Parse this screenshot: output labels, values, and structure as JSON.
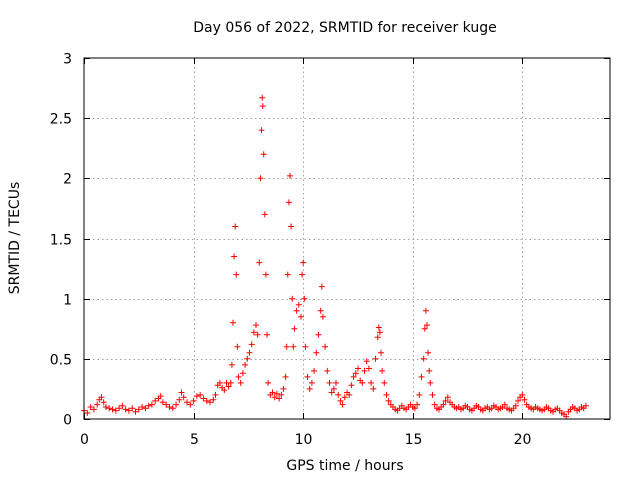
{
  "chart_data": {
    "type": "scatter",
    "title": "Day 056 of 2022, SRMTID for receiver kuge",
    "xlabel": "GPS time / hours",
    "ylabel": "SRMTID / TECUs",
    "xlim": [
      0,
      24
    ],
    "ylim": [
      0,
      3
    ],
    "xticks": [
      0,
      5,
      10,
      15,
      20
    ],
    "yticks": [
      0,
      0.5,
      1,
      1.5,
      2,
      2.5,
      3
    ],
    "xtick_labels": [
      "0",
      "5",
      "10",
      "15",
      "20"
    ],
    "ytick_labels": [
      "0",
      "0.5",
      "1",
      "1.5",
      "2",
      "2.5",
      "3"
    ],
    "grid": true,
    "marker": "+",
    "color": "#ff0000",
    "series": [
      {
        "name": "SRMTID",
        "points": [
          [
            0.0,
            0.07
          ],
          [
            0.15,
            0.05
          ],
          [
            0.3,
            0.1
          ],
          [
            0.45,
            0.08
          ],
          [
            0.6,
            0.12
          ],
          [
            0.7,
            0.16
          ],
          [
            0.8,
            0.18
          ],
          [
            0.9,
            0.14
          ],
          [
            1.0,
            0.1
          ],
          [
            1.15,
            0.09
          ],
          [
            1.3,
            0.08
          ],
          [
            1.45,
            0.07
          ],
          [
            1.6,
            0.09
          ],
          [
            1.75,
            0.11
          ],
          [
            1.9,
            0.08
          ],
          [
            2.05,
            0.07
          ],
          [
            2.2,
            0.09
          ],
          [
            2.35,
            0.06
          ],
          [
            2.5,
            0.08
          ],
          [
            2.65,
            0.1
          ],
          [
            2.8,
            0.09
          ],
          [
            2.95,
            0.11
          ],
          [
            3.1,
            0.12
          ],
          [
            3.25,
            0.15
          ],
          [
            3.4,
            0.17
          ],
          [
            3.5,
            0.19
          ],
          [
            3.6,
            0.14
          ],
          [
            3.75,
            0.12
          ],
          [
            3.9,
            0.1
          ],
          [
            4.05,
            0.09
          ],
          [
            4.2,
            0.12
          ],
          [
            4.35,
            0.16
          ],
          [
            4.45,
            0.22
          ],
          [
            4.55,
            0.18
          ],
          [
            4.7,
            0.14
          ],
          [
            4.85,
            0.12
          ],
          [
            5.0,
            0.15
          ],
          [
            5.15,
            0.19
          ],
          [
            5.3,
            0.2
          ],
          [
            5.45,
            0.17
          ],
          [
            5.6,
            0.15
          ],
          [
            5.75,
            0.14
          ],
          [
            5.9,
            0.16
          ],
          [
            6.0,
            0.2
          ],
          [
            6.1,
            0.28
          ],
          [
            6.2,
            0.3
          ],
          [
            6.3,
            0.26
          ],
          [
            6.4,
            0.24
          ],
          [
            6.5,
            0.3
          ],
          [
            6.6,
            0.27
          ],
          [
            6.7,
            0.3
          ],
          [
            6.75,
            0.45
          ],
          [
            6.8,
            0.8
          ],
          [
            6.85,
            1.35
          ],
          [
            6.9,
            1.6
          ],
          [
            6.95,
            1.2
          ],
          [
            7.0,
            0.6
          ],
          [
            7.05,
            0.35
          ],
          [
            7.15,
            0.3
          ],
          [
            7.25,
            0.38
          ],
          [
            7.35,
            0.45
          ],
          [
            7.45,
            0.5
          ],
          [
            7.55,
            0.55
          ],
          [
            7.65,
            0.62
          ],
          [
            7.75,
            0.72
          ],
          [
            7.85,
            0.78
          ],
          [
            7.92,
            0.7
          ],
          [
            8.0,
            1.3
          ],
          [
            8.05,
            2.0
          ],
          [
            8.1,
            2.4
          ],
          [
            8.13,
            2.67
          ],
          [
            8.16,
            2.6
          ],
          [
            8.2,
            2.2
          ],
          [
            8.25,
            1.7
          ],
          [
            8.3,
            1.2
          ],
          [
            8.35,
            0.7
          ],
          [
            8.4,
            0.3
          ],
          [
            8.5,
            0.2
          ],
          [
            8.6,
            0.22
          ],
          [
            8.7,
            0.18
          ],
          [
            8.8,
            0.21
          ],
          [
            8.9,
            0.17
          ],
          [
            9.0,
            0.2
          ],
          [
            9.1,
            0.25
          ],
          [
            9.2,
            0.35
          ],
          [
            9.25,
            0.6
          ],
          [
            9.3,
            1.2
          ],
          [
            9.35,
            1.8
          ],
          [
            9.4,
            2.02
          ],
          [
            9.45,
            1.6
          ],
          [
            9.5,
            1.0
          ],
          [
            9.55,
            0.6
          ],
          [
            9.6,
            0.75
          ],
          [
            9.7,
            0.9
          ],
          [
            9.8,
            0.95
          ],
          [
            9.9,
            0.85
          ],
          [
            9.95,
            1.2
          ],
          [
            10.0,
            1.3
          ],
          [
            10.05,
            1.0
          ],
          [
            10.1,
            0.6
          ],
          [
            10.2,
            0.35
          ],
          [
            10.3,
            0.25
          ],
          [
            10.4,
            0.3
          ],
          [
            10.5,
            0.4
          ],
          [
            10.6,
            0.55
          ],
          [
            10.7,
            0.7
          ],
          [
            10.8,
            0.9
          ],
          [
            10.85,
            1.1
          ],
          [
            10.9,
            0.85
          ],
          [
            11.0,
            0.6
          ],
          [
            11.1,
            0.4
          ],
          [
            11.2,
            0.3
          ],
          [
            11.3,
            0.22
          ],
          [
            11.4,
            0.25
          ],
          [
            11.5,
            0.3
          ],
          [
            11.6,
            0.2
          ],
          [
            11.7,
            0.15
          ],
          [
            11.8,
            0.12
          ],
          [
            11.9,
            0.18
          ],
          [
            12.0,
            0.22
          ],
          [
            12.1,
            0.2
          ],
          [
            12.2,
            0.28
          ],
          [
            12.3,
            0.35
          ],
          [
            12.4,
            0.38
          ],
          [
            12.5,
            0.42
          ],
          [
            12.6,
            0.32
          ],
          [
            12.7,
            0.3
          ],
          [
            12.8,
            0.4
          ],
          [
            12.9,
            0.48
          ],
          [
            13.0,
            0.42
          ],
          [
            13.1,
            0.3
          ],
          [
            13.2,
            0.25
          ],
          [
            13.3,
            0.5
          ],
          [
            13.4,
            0.68
          ],
          [
            13.45,
            0.76
          ],
          [
            13.5,
            0.72
          ],
          [
            13.55,
            0.55
          ],
          [
            13.6,
            0.4
          ],
          [
            13.7,
            0.3
          ],
          [
            13.8,
            0.2
          ],
          [
            13.9,
            0.15
          ],
          [
            14.0,
            0.12
          ],
          [
            14.1,
            0.1
          ],
          [
            14.2,
            0.08
          ],
          [
            14.3,
            0.07
          ],
          [
            14.4,
            0.09
          ],
          [
            14.5,
            0.11
          ],
          [
            14.6,
            0.09
          ],
          [
            14.7,
            0.08
          ],
          [
            14.8,
            0.1
          ],
          [
            14.9,
            0.12
          ],
          [
            15.0,
            0.1
          ],
          [
            15.1,
            0.09
          ],
          [
            15.2,
            0.12
          ],
          [
            15.3,
            0.2
          ],
          [
            15.4,
            0.35
          ],
          [
            15.5,
            0.5
          ],
          [
            15.55,
            0.75
          ],
          [
            15.6,
            0.9
          ],
          [
            15.65,
            0.78
          ],
          [
            15.7,
            0.55
          ],
          [
            15.75,
            0.4
          ],
          [
            15.8,
            0.3
          ],
          [
            15.9,
            0.2
          ],
          [
            16.0,
            0.12
          ],
          [
            16.1,
            0.09
          ],
          [
            16.2,
            0.08
          ],
          [
            16.3,
            0.1
          ],
          [
            16.4,
            0.12
          ],
          [
            16.5,
            0.15
          ],
          [
            16.6,
            0.18
          ],
          [
            16.7,
            0.14
          ],
          [
            16.8,
            0.12
          ],
          [
            16.9,
            0.1
          ],
          [
            17.0,
            0.09
          ],
          [
            17.1,
            0.1
          ],
          [
            17.2,
            0.08
          ],
          [
            17.3,
            0.09
          ],
          [
            17.4,
            0.11
          ],
          [
            17.5,
            0.1
          ],
          [
            17.6,
            0.08
          ],
          [
            17.7,
            0.07
          ],
          [
            17.8,
            0.09
          ],
          [
            17.9,
            0.11
          ],
          [
            18.0,
            0.1
          ],
          [
            18.1,
            0.08
          ],
          [
            18.2,
            0.07
          ],
          [
            18.3,
            0.09
          ],
          [
            18.4,
            0.1
          ],
          [
            18.5,
            0.08
          ],
          [
            18.6,
            0.09
          ],
          [
            18.7,
            0.11
          ],
          [
            18.8,
            0.1
          ],
          [
            18.9,
            0.08
          ],
          [
            19.0,
            0.09
          ],
          [
            19.1,
            0.1
          ],
          [
            19.2,
            0.12
          ],
          [
            19.3,
            0.09
          ],
          [
            19.4,
            0.08
          ],
          [
            19.5,
            0.07
          ],
          [
            19.6,
            0.09
          ],
          [
            19.7,
            0.11
          ],
          [
            19.8,
            0.15
          ],
          [
            19.9,
            0.18
          ],
          [
            20.0,
            0.2
          ],
          [
            20.1,
            0.16
          ],
          [
            20.2,
            0.12
          ],
          [
            20.3,
            0.1
          ],
          [
            20.4,
            0.09
          ],
          [
            20.5,
            0.08
          ],
          [
            20.6,
            0.1
          ],
          [
            20.7,
            0.09
          ],
          [
            20.8,
            0.08
          ],
          [
            20.9,
            0.07
          ],
          [
            21.0,
            0.08
          ],
          [
            21.1,
            0.1
          ],
          [
            21.2,
            0.09
          ],
          [
            21.3,
            0.07
          ],
          [
            21.4,
            0.06
          ],
          [
            21.5,
            0.08
          ],
          [
            21.6,
            0.09
          ],
          [
            21.7,
            0.07
          ],
          [
            21.8,
            0.05
          ],
          [
            21.9,
            0.04
          ],
          [
            22.0,
            0.02
          ],
          [
            22.1,
            0.06
          ],
          [
            22.2,
            0.08
          ],
          [
            22.3,
            0.1
          ],
          [
            22.4,
            0.09
          ],
          [
            22.5,
            0.07
          ],
          [
            22.6,
            0.08
          ],
          [
            22.7,
            0.1
          ],
          [
            22.8,
            0.09
          ],
          [
            22.9,
            0.11
          ]
        ]
      }
    ]
  }
}
